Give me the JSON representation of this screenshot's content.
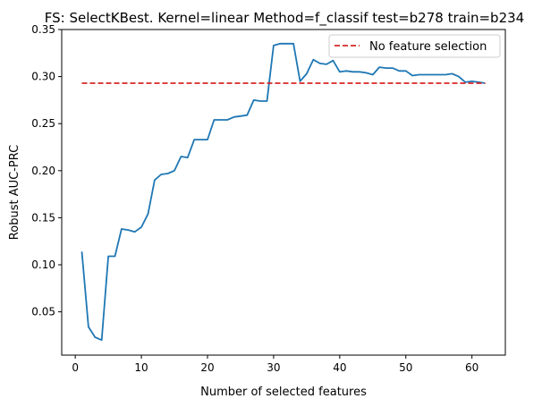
{
  "chart_data": {
    "type": "line",
    "title": "FS: SelectKBest. Kernel=linear Method=f_classif test=b278 train=b234",
    "xlabel": "Number of selected features",
    "ylabel": "Robust AUC-PRC",
    "xlim": [
      -2.05,
      65.05
    ],
    "ylim": [
      0.004,
      0.35
    ],
    "xticks": [
      0,
      10,
      20,
      30,
      40,
      50,
      60
    ],
    "xtick_labels": [
      "0",
      "10",
      "20",
      "30",
      "40",
      "50",
      "60"
    ],
    "yticks": [
      0.05,
      0.1,
      0.15,
      0.2,
      0.25,
      0.3,
      0.35
    ],
    "ytick_labels": [
      "0.05",
      "0.10",
      "0.15",
      "0.20",
      "0.25",
      "0.30",
      "0.35"
    ],
    "grid": false,
    "legend_position": "upper right",
    "series": [
      {
        "color": "#1f77b4",
        "style": "solid",
        "x": [
          1,
          2,
          3,
          4,
          5,
          6,
          7,
          8,
          9,
          10,
          11,
          12,
          13,
          14,
          15,
          16,
          17,
          18,
          19,
          20,
          21,
          22,
          23,
          24,
          25,
          26,
          27,
          28,
          29,
          30,
          31,
          32,
          33,
          34,
          35,
          36,
          37,
          38,
          39,
          40,
          41,
          42,
          43,
          44,
          45,
          46,
          47,
          48,
          49,
          50,
          51,
          52,
          53,
          54,
          55,
          56,
          57,
          58,
          59,
          60,
          61,
          62
        ],
        "values": [
          0.114,
          0.034,
          0.023,
          0.02,
          0.109,
          0.109,
          0.138,
          0.137,
          0.135,
          0.14,
          0.154,
          0.19,
          0.196,
          0.197,
          0.2,
          0.215,
          0.214,
          0.233,
          0.233,
          0.233,
          0.254,
          0.254,
          0.254,
          0.257,
          0.258,
          0.259,
          0.275,
          0.274,
          0.274,
          0.333,
          0.335,
          0.335,
          0.335,
          0.295,
          0.303,
          0.318,
          0.314,
          0.313,
          0.317,
          0.305,
          0.306,
          0.305,
          0.305,
          0.304,
          0.302,
          0.31,
          0.309,
          0.309,
          0.306,
          0.306,
          0.301,
          0.302,
          0.302,
          0.302,
          0.302,
          0.302,
          0.303,
          0.3,
          0.294,
          0.295,
          0.294,
          0.293
        ]
      },
      {
        "name": "No feature selection",
        "color": "#d62728",
        "style": "dashed",
        "x": [
          1,
          62
        ],
        "values": [
          0.293,
          0.293
        ]
      }
    ]
  }
}
